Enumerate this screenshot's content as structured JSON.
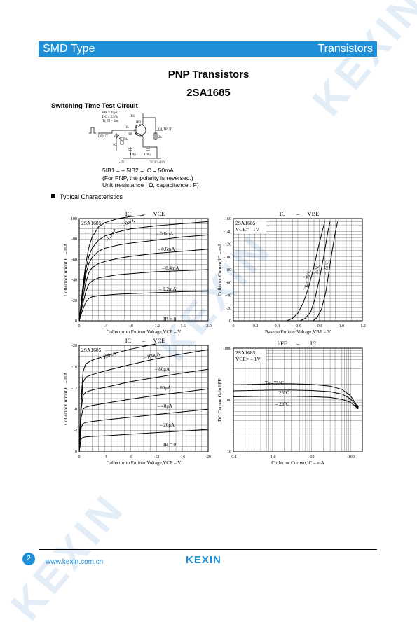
{
  "header": {
    "left": "SMD Type",
    "right": "Transistors"
  },
  "title": "PNP  Transistors",
  "part_number": "2SA1685",
  "switching": {
    "heading": "Switching Time Test Circuit",
    "pulse_spec": [
      "PW = 10μs",
      "DC ≤ 2.5%",
      "Tr, Tf = 3ns"
    ],
    "labels": {
      "ib1": "IB1",
      "ib2": "IB2",
      "input": "INPUT",
      "output": "OUTPUT",
      "vr": "VR",
      "r5k": "5k",
      "r1k": "1k",
      "rb": "RB",
      "r2k": "2k",
      "r50": "50",
      "c100": "100μ",
      "c470": "470μ",
      "m5v": "-5V",
      "vcc": "VCC=-10V"
    },
    "note1": "5IB1 = – 5IB2 = IC = 50mA",
    "note2": "(For PNP, the polarity is reversed.)",
    "note3": "Unit (resistance : Ω, capacitance : F)"
  },
  "typical": "Typical  Characteristics",
  "charts_text": {
    "c1": {
      "title_a": "IC",
      "title_b": "VCE",
      "dash": "–",
      "part": "2SA1685",
      "ylabel": "Collector Current,IC – mA",
      "xlabel": "Collector to Emitter Voltage,VCE – V",
      "curve_labels": [
        "–1.2mA",
        "–1.0mA",
        "– 0.8mA",
        "– 0.6mA",
        "– 0.4mA",
        "– 0.2mA",
        "IB = 0"
      ]
    },
    "c2": {
      "title_a": "IC",
      "title_b": "VBE",
      "dash": "–",
      "part": "2SA1685",
      "cond": "VCE= –1V",
      "ylabel": "Collector Current,IC – mA",
      "xlabel": "Base to Emitter Voltage,VBE – V",
      "curve_labels": [
        "Ta= 75°C",
        "25°C",
        "– 25°C"
      ]
    },
    "c3": {
      "title_a": "IC",
      "title_b": "VCE",
      "dash": "–",
      "part": "2SA1685",
      "ylabel": "Collector Current,IC – mA",
      "xlabel": "Collector to Emitter Voltage,VCE – V",
      "curve_labels": [
        "– 120μA",
        "– 100μA",
        "– 80μA",
        "– 60μA",
        "– 40μA",
        "– 20μA",
        "IB = 0"
      ]
    },
    "c4": {
      "title_a": "hFE",
      "title_b": "IC",
      "dash": "–",
      "part": "2SA1685",
      "cond": "VCE= – 1V",
      "ylabel": "DC Current Gain,hFE",
      "xlabel": "Collector Current,IC – mA",
      "curve_labels": [
        "Ta= 75°C",
        "25°C",
        "– 25°C"
      ]
    }
  },
  "chart_data": [
    {
      "type": "line",
      "title": "IC – VCE",
      "xlabel": "Collector to Emitter Voltage,VCE – V",
      "ylabel": "Collector Current,IC – mA",
      "xlim": [
        0,
        -2.0
      ],
      "ylim": [
        0,
        -100
      ],
      "xticks": [
        "0",
        "-.4",
        "-.8",
        "-1.2",
        "-1.6",
        "-2.0"
      ],
      "yticks": [
        "0",
        "-20",
        "-40",
        "-60",
        "-80",
        "-100"
      ],
      "series": [
        {
          "name": "–1.2mA",
          "x": [
            0,
            -0.05,
            -0.1,
            -0.15,
            -0.2,
            -0.3,
            -0.4,
            -0.6,
            -0.8,
            -1.0
          ],
          "y": [
            0,
            -30,
            -55,
            -72,
            -82,
            -92,
            -96,
            -100,
            -102,
            -103
          ]
        },
        {
          "name": "–1.0mA",
          "x": [
            0,
            -0.05,
            -0.1,
            -0.15,
            -0.2,
            -0.3,
            -0.4,
            -0.6,
            -0.8,
            -1.2,
            -1.6,
            -2.0
          ],
          "y": [
            0,
            -28,
            -50,
            -63,
            -71,
            -79,
            -83,
            -87,
            -90,
            -93,
            -95,
            -97
          ]
        },
        {
          "name": "– 0.8mA",
          "x": [
            0,
            -0.05,
            -0.1,
            -0.15,
            -0.2,
            -0.3,
            -0.4,
            -0.6,
            -0.8,
            -1.2,
            -1.6,
            -2.0
          ],
          "y": [
            0,
            -25,
            -45,
            -56,
            -62,
            -68,
            -71,
            -74,
            -76,
            -79,
            -82,
            -84
          ]
        },
        {
          "name": "– 0.6mA",
          "x": [
            0,
            -0.05,
            -0.1,
            -0.15,
            -0.2,
            -0.3,
            -0.4,
            -0.6,
            -0.8,
            -1.2,
            -1.6,
            -2.0
          ],
          "y": [
            0,
            -20,
            -37,
            -47,
            -52,
            -56,
            -58,
            -61,
            -63,
            -66,
            -68,
            -70
          ]
        },
        {
          "name": "– 0.4mA",
          "x": [
            0,
            -0.05,
            -0.1,
            -0.15,
            -0.2,
            -0.3,
            -0.4,
            -0.6,
            -0.8,
            -1.2,
            -1.6,
            -2.0
          ],
          "y": [
            0,
            -15,
            -28,
            -36,
            -39,
            -42,
            -43,
            -45,
            -46,
            -48,
            -49,
            -50
          ]
        },
        {
          "name": "– 0.2mA",
          "x": [
            0,
            -0.05,
            -0.1,
            -0.15,
            -0.2,
            -0.3,
            -0.4,
            -0.6,
            -0.8,
            -1.2,
            -1.6,
            -2.0
          ],
          "y": [
            0,
            -10,
            -18,
            -22,
            -23.5,
            -24.5,
            -25,
            -26,
            -26.5,
            -27.5,
            -28.5,
            -29
          ]
        },
        {
          "name": "IB = 0",
          "x": [
            0,
            -2.0
          ],
          "y": [
            0,
            0
          ]
        }
      ]
    },
    {
      "type": "line",
      "title": "IC – VBE",
      "xlabel": "Base to Emitter Voltage,VBE – V",
      "ylabel": "Collector Current,IC – mA",
      "xlim": [
        0,
        -1.2
      ],
      "ylim": [
        0,
        -160
      ],
      "xticks": [
        "0",
        "-0.2",
        "-0.4",
        "-0.6",
        "-0.8",
        "-1.0",
        "-1.2"
      ],
      "yticks": [
        "0",
        "-20",
        "-40",
        "-60",
        "-80",
        "-100",
        "-120",
        "-140",
        "-160"
      ],
      "series": [
        {
          "name": "Ta= 75°C",
          "x": [
            -0.5,
            -0.55,
            -0.6,
            -0.65,
            -0.7,
            -0.75,
            -0.8,
            -0.85
          ],
          "y": [
            0,
            -4,
            -12,
            -28,
            -52,
            -85,
            -122,
            -155
          ]
        },
        {
          "name": "25°C",
          "x": [
            -0.62,
            -0.67,
            -0.72,
            -0.76,
            -0.8,
            -0.84,
            -0.88,
            -0.9
          ],
          "y": [
            0,
            -4,
            -14,
            -35,
            -65,
            -100,
            -140,
            -155
          ]
        },
        {
          "name": "– 25°C",
          "x": [
            -0.74,
            -0.78,
            -0.82,
            -0.86,
            -0.89,
            -0.92,
            -0.95,
            -0.97
          ],
          "y": [
            0,
            -5,
            -18,
            -45,
            -78,
            -110,
            -140,
            -155
          ]
        }
      ]
    },
    {
      "type": "line",
      "title": "IC – VCE",
      "xlabel": "Collector to Emitter Voltage,VCE – V",
      "ylabel": "Collector Current,IC – mA",
      "xlim": [
        0,
        -20
      ],
      "ylim": [
        0,
        -20
      ],
      "xticks": [
        "0",
        "-4",
        "-8",
        "-12",
        "-16",
        "-20"
      ],
      "yticks": [
        "0",
        "-4",
        "-8",
        "-12",
        "-16",
        "-20"
      ],
      "series": [
        {
          "name": "– 120μA",
          "x": [
            0,
            -0.3,
            -0.6,
            -1,
            -2,
            -4,
            -8,
            -12
          ],
          "y": [
            0,
            -10,
            -15,
            -16.5,
            -17.2,
            -18,
            -19.3,
            -20.3
          ]
        },
        {
          "name": "– 100μA",
          "x": [
            0,
            -0.3,
            -0.6,
            -1,
            -2,
            -4,
            -8,
            -12,
            -16,
            -20
          ],
          "y": [
            0,
            -9,
            -13,
            -14,
            -14.5,
            -15.2,
            -16.4,
            -17.5,
            -18.4,
            -19.2
          ]
        },
        {
          "name": "– 80μA",
          "x": [
            0,
            -0.3,
            -0.6,
            -1,
            -2,
            -4,
            -8,
            -12,
            -16,
            -20
          ],
          "y": [
            0,
            -8,
            -10.6,
            -11.2,
            -11.6,
            -12.1,
            -13.2,
            -14.0,
            -14.8,
            -15.5
          ]
        },
        {
          "name": "– 60μA",
          "x": [
            0,
            -0.3,
            -0.6,
            -1,
            -2,
            -4,
            -8,
            -12,
            -16,
            -20
          ],
          "y": [
            0,
            -6.5,
            -8.0,
            -8.4,
            -8.7,
            -9.1,
            -9.9,
            -10.6,
            -11.2,
            -11.8
          ]
        },
        {
          "name": "– 40μA",
          "x": [
            0,
            -0.3,
            -0.6,
            -1,
            -2,
            -4,
            -8,
            -12,
            -16,
            -20
          ],
          "y": [
            0,
            -4.5,
            -5.3,
            -5.5,
            -5.7,
            -6.0,
            -6.5,
            -7.0,
            -7.5,
            -8.0
          ]
        },
        {
          "name": "– 20μA",
          "x": [
            0,
            -0.3,
            -0.6,
            -1,
            -2,
            -4,
            -8,
            -12,
            -16,
            -20
          ],
          "y": [
            0,
            -2.4,
            -2.7,
            -2.8,
            -2.9,
            -3.0,
            -3.3,
            -3.6,
            -3.9,
            -4.2
          ]
        },
        {
          "name": "IB = 0",
          "x": [
            0,
            -20
          ],
          "y": [
            0,
            0
          ]
        }
      ]
    },
    {
      "type": "line",
      "title": "hFE – IC",
      "xlabel": "Collector Current,IC – mA",
      "ylabel": "DC Current Gain,hFE",
      "log_x": true,
      "log_y": true,
      "xlim": [
        -0.1,
        -200
      ],
      "ylim": [
        10,
        1000
      ],
      "xticks": [
        "-0.1",
        "-1.0",
        "-10",
        "-100"
      ],
      "yticks": [
        "10",
        "100",
        "1000"
      ],
      "series": [
        {
          "name": "Ta= 75°C",
          "x": [
            -0.1,
            -0.3,
            -1,
            -3,
            -10,
            -30,
            -60,
            -100,
            -150
          ],
          "y": [
            195,
            200,
            205,
            205,
            200,
            185,
            160,
            120,
            75
          ]
        },
        {
          "name": "25°C",
          "x": [
            -0.1,
            -0.3,
            -1,
            -3,
            -10,
            -30,
            -60,
            -100,
            -150
          ],
          "y": [
            150,
            152,
            155,
            155,
            152,
            145,
            130,
            105,
            72
          ]
        },
        {
          "name": "– 25°C",
          "x": [
            -0.1,
            -0.3,
            -1,
            -3,
            -10,
            -30,
            -60,
            -100,
            -150
          ],
          "y": [
            115,
            117,
            118,
            118,
            116,
            112,
            103,
            90,
            70
          ]
        }
      ]
    }
  ],
  "footer": {
    "page": "2",
    "url": "www.kexin.com.cn",
    "logo": "KEXIN"
  },
  "watermark": "KEXIN"
}
